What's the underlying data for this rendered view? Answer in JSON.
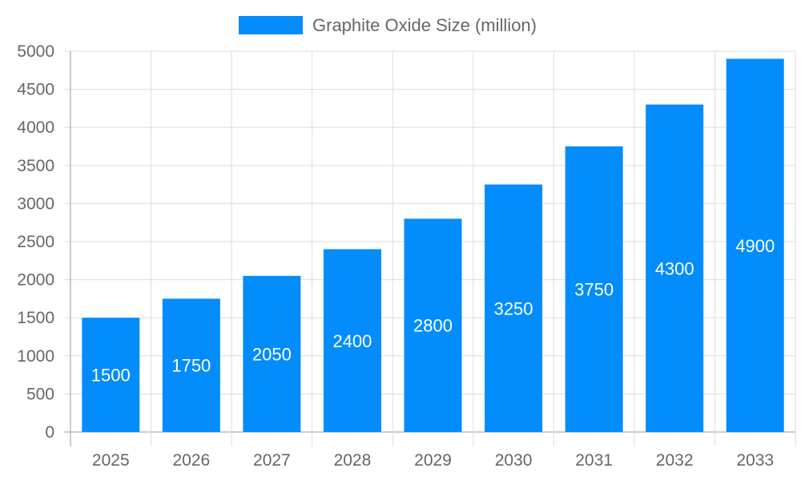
{
  "chart_data": {
    "type": "bar",
    "title": "",
    "xlabel": "",
    "ylabel": "",
    "categories": [
      "2025",
      "2026",
      "2027",
      "2028",
      "2029",
      "2030",
      "2031",
      "2032",
      "2033"
    ],
    "series": [
      {
        "name": "Graphite Oxide Size (million)",
        "values": [
          1500,
          1750,
          2050,
          2400,
          2800,
          3250,
          3750,
          4300,
          4900
        ],
        "color": "#038cfc"
      }
    ],
    "ylim": [
      0,
      5000
    ],
    "yticks": [
      0,
      500,
      1000,
      1500,
      2000,
      2500,
      3000,
      3500,
      4000,
      4500,
      5000
    ],
    "grid": true,
    "legend": "top",
    "data_labels": true
  }
}
